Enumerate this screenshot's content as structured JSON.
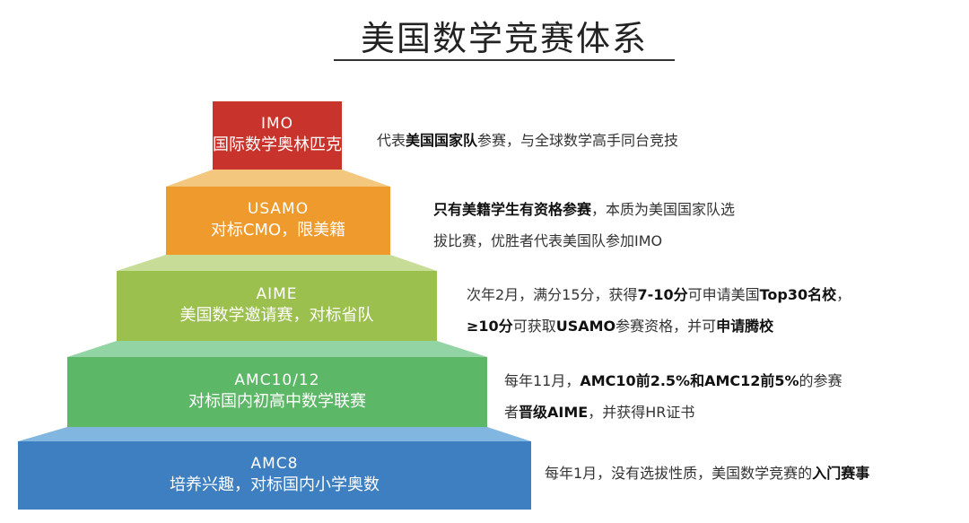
{
  "title": "美国数学竞赛体系",
  "levels": [
    {
      "name": "IMO",
      "subtitle": "国际数学奥林匹克",
      "color": "#c8342b",
      "slope_color": "#e8a77f",
      "description": [
        [
          {
            "t": "代表",
            "b": false
          },
          {
            "t": "美国国家队",
            "b": true
          },
          {
            "t": "参赛，与全球数学高手同台竞技",
            "b": false
          }
        ]
      ]
    },
    {
      "name": "USAMO",
      "subtitle": "对标CMO，限美籍",
      "color": "#ee9a2c",
      "slope_color": "#f4c77f",
      "description": [
        [
          {
            "t": "只有美籍学生有资格参赛",
            "b": true
          },
          {
            "t": "，本质为美国国家队选",
            "b": false
          }
        ],
        [
          {
            "t": "拔比赛，优胜者代表美国队参加IMO",
            "b": false
          }
        ]
      ]
    },
    {
      "name": "AIME",
      "subtitle": "美国数学邀请赛，对标省队",
      "color": "#9cc04e",
      "slope_color": "#c7dc96",
      "description": [
        [
          {
            "t": "次年2月，满分15分，获得",
            "b": false
          },
          {
            "t": "7-10分",
            "b": true
          },
          {
            "t": "可申请美国",
            "b": false
          },
          {
            "t": "Top30名校",
            "b": true
          },
          {
            "t": "，",
            "b": false
          }
        ],
        [
          {
            "t": "≥10分",
            "b": true
          },
          {
            "t": "可获取",
            "b": false
          },
          {
            "t": "USAMO",
            "b": true
          },
          {
            "t": "参赛资格，并可",
            "b": false
          },
          {
            "t": "申请腾校",
            "b": true
          }
        ]
      ]
    },
    {
      "name": "AMC10/12",
      "subtitle": "对标国内初高中数学联赛",
      "color": "#5cb867",
      "slope_color": "#93d4a4",
      "description": [
        [
          {
            "t": "每年11月，",
            "b": false
          },
          {
            "t": "AMC10前2.5%和AMC12前5%",
            "b": true
          },
          {
            "t": "的参赛",
            "b": false
          }
        ],
        [
          {
            "t": "者",
            "b": false
          },
          {
            "t": "晋级AIME",
            "b": true
          },
          {
            "t": "，并获得HR证书",
            "b": false
          }
        ]
      ]
    },
    {
      "name": "AMC8",
      "subtitle": "培养兴趣，对标国内小学奥数",
      "color": "#3d7fc0",
      "slope_color": "#80b6e0",
      "description": [
        [
          {
            "t": "每年1月，没有选拔性质，美国数学竞赛的",
            "b": false
          },
          {
            "t": "入门赛事",
            "b": true
          }
        ]
      ]
    }
  ]
}
